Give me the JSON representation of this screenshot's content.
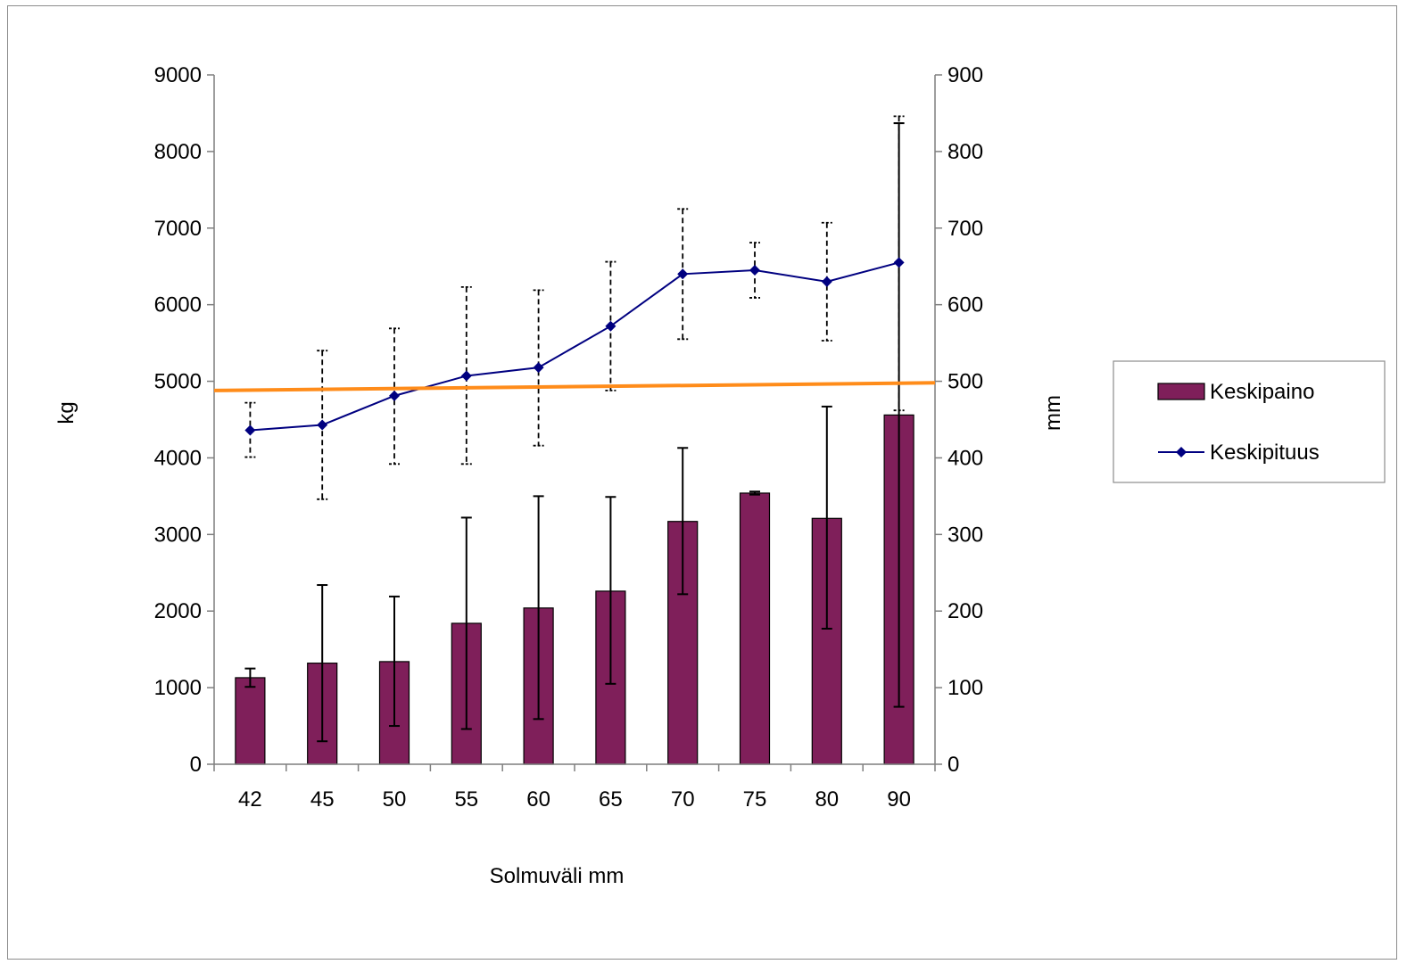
{
  "chart_data": {
    "type": "bar",
    "categories": [
      "42",
      "45",
      "50",
      "55",
      "60",
      "65",
      "70",
      "75",
      "80",
      "90"
    ],
    "xlabel": "Solmuväli mm",
    "ylabel": "kg",
    "y2label": "mm",
    "ylim": [
      0,
      9000
    ],
    "y2lim": [
      0,
      900
    ],
    "yticks": [
      "0",
      "1000",
      "2000",
      "3000",
      "4000",
      "5000",
      "6000",
      "7000",
      "8000",
      "9000"
    ],
    "y2ticks": [
      "0",
      "100",
      "200",
      "300",
      "400",
      "500",
      "600",
      "700",
      "800",
      "900"
    ],
    "legend_position": "right",
    "grid": false,
    "series": [
      {
        "name": "Keskipaino",
        "type": "bar",
        "axis": "left",
        "color": "#7f1f5a",
        "values": [
          1130,
          1320,
          1340,
          1840,
          2040,
          2260,
          3170,
          3540,
          3210,
          4560
        ],
        "error_low": [
          1010,
          300,
          500,
          460,
          590,
          1050,
          2220,
          3520,
          1770,
          750
        ],
        "error_high": [
          1250,
          2340,
          2190,
          3220,
          3500,
          3490,
          4130,
          3560,
          4670,
          8370
        ]
      },
      {
        "name": "Keskipituus",
        "type": "line",
        "axis": "right",
        "color": "#000080",
        "marker": "diamond",
        "values": [
          436,
          443,
          481,
          507,
          518,
          572,
          640,
          645,
          630,
          655
        ],
        "error_low": [
          401,
          346,
          392,
          392,
          416,
          488,
          555,
          609,
          553,
          462
        ],
        "error_high": [
          472,
          540,
          569,
          623,
          619,
          656,
          725,
          681,
          707,
          846
        ]
      }
    ],
    "reference_line": {
      "color": "#ff8c1a",
      "axis": "left",
      "start": 4880,
      "end": 4980
    }
  }
}
